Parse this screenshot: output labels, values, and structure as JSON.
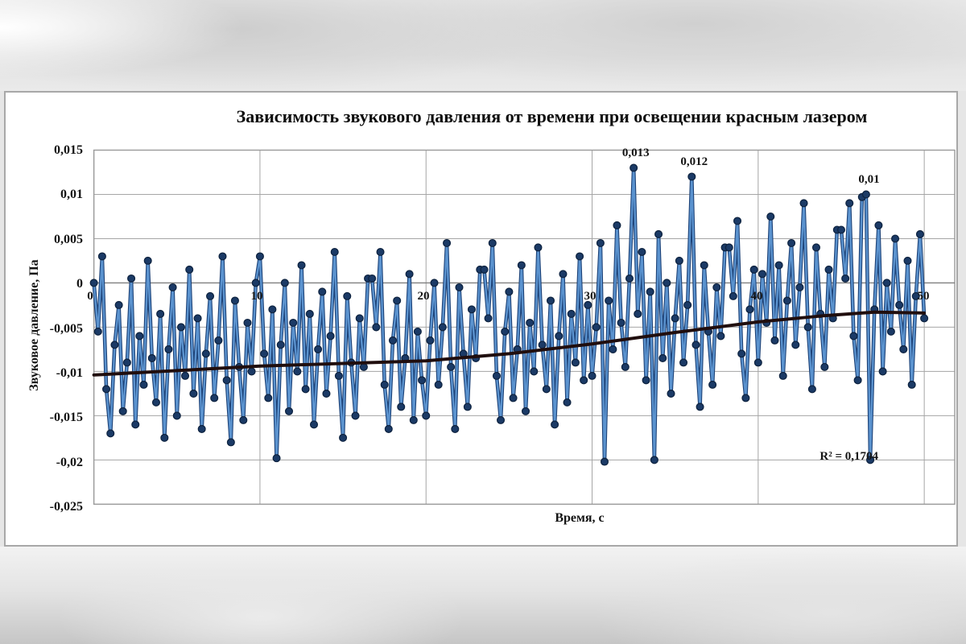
{
  "chart_data": {
    "type": "line",
    "title": "Зависимость звукового давления от времени при освещении красным лазером",
    "xlabel": "Время, с",
    "ylabel": "Звуковое давление, Па",
    "xlim": [
      0,
      51.8
    ],
    "ylim": [
      -0.025,
      0.015
    ],
    "grid": true,
    "x_ticks": [
      0,
      10,
      20,
      30,
      40,
      50
    ],
    "x_tick_labels": [
      "0",
      "10",
      "20",
      "30",
      "40",
      "50"
    ],
    "y_ticks": [
      0.015,
      0.01,
      0.005,
      0,
      -0.005,
      -0.01,
      -0.015,
      -0.02,
      -0.025
    ],
    "y_tick_labels": [
      "0,015",
      "0,01",
      "0,005",
      "0",
      "-0,005",
      "-0,01",
      "-0,015",
      "-0,02",
      "-0,025"
    ],
    "series": [
      {
        "name": "Звуковое давление",
        "marker": "circle",
        "t_start": 0,
        "t_step": 0.25,
        "values": [
          0,
          -0.0055,
          0.003,
          -0.012,
          -0.017,
          -0.007,
          -0.0025,
          -0.0145,
          -0.009,
          0.0005,
          -0.016,
          -0.006,
          -0.0115,
          0.0025,
          -0.0085,
          -0.0135,
          -0.0035,
          -0.0175,
          -0.0075,
          -0.0005,
          -0.015,
          -0.005,
          -0.0105,
          0.0015,
          -0.0125,
          -0.004,
          -0.0165,
          -0.008,
          -0.0015,
          -0.013,
          -0.0065,
          0.003,
          -0.011,
          -0.018,
          -0.002,
          -0.0095,
          -0.0155,
          -0.0045,
          -0.01,
          0,
          0.003,
          -0.008,
          -0.013,
          -0.003,
          -0.0198,
          -0.007,
          0,
          -0.0145,
          -0.0045,
          -0.01,
          0.002,
          -0.012,
          -0.0035,
          -0.016,
          -0.0075,
          -0.001,
          -0.0125,
          -0.006,
          0.0035,
          -0.0105,
          -0.0175,
          -0.0015,
          -0.009,
          -0.015,
          -0.004,
          -0.0095,
          0.0005,
          0.0005,
          -0.005,
          0.0035,
          -0.0115,
          -0.0165,
          -0.0065,
          -0.002,
          -0.014,
          -0.0085,
          0.001,
          -0.0155,
          -0.0055,
          -0.011,
          -0.015,
          -0.0065,
          0,
          -0.0115,
          -0.005,
          0.0045,
          -0.0095,
          -0.0165,
          -0.0005,
          -0.008,
          -0.014,
          -0.003,
          -0.0085,
          0.0015,
          0.0015,
          -0.004,
          0.0045,
          -0.0105,
          -0.0155,
          -0.0055,
          -0.001,
          -0.013,
          -0.0075,
          0.002,
          -0.0145,
          -0.0045,
          -0.01,
          0.004,
          -0.007,
          -0.012,
          -0.002,
          -0.016,
          -0.006,
          0.001,
          -0.0135,
          -0.0035,
          -0.009,
          0.003,
          -0.011,
          -0.0025,
          -0.0105,
          -0.005,
          0.0045,
          -0.0202,
          -0.002,
          -0.0075,
          0.0065,
          -0.0045,
          -0.0095,
          0.0005,
          0.013,
          -0.0035,
          0.0035,
          -0.011,
          -0.001,
          -0.02,
          0.0055,
          -0.0085,
          0,
          -0.0125,
          -0.004,
          0.0025,
          -0.009,
          -0.0025,
          0.012,
          -0.007,
          -0.014,
          0.002,
          -0.0055,
          -0.0115,
          -0.0005,
          -0.006,
          0.004,
          0.004,
          -0.0015,
          0.007,
          -0.008,
          -0.013,
          -0.003,
          0.0015,
          -0.009,
          0.001,
          -0.0045,
          0.0075,
          -0.0065,
          0.002,
          -0.0105,
          -0.002,
          0.0045,
          -0.007,
          -0.0005,
          0.009,
          -0.005,
          -0.012,
          0.004,
          -0.0035,
          -0.0095,
          0.0015,
          -0.004,
          0.006,
          0.006,
          0.0005,
          0.009,
          -0.006,
          -0.011,
          0.0097,
          0.01,
          -0.02,
          -0.003,
          0.0065,
          -0.01,
          0,
          -0.0055,
          0.005,
          -0.0025,
          -0.0075,
          0.0025,
          -0.0115,
          -0.0015,
          0.0055,
          -0.004
        ]
      }
    ],
    "trendline": {
      "type": "polynomial",
      "points": [
        [
          0,
          -0.0104
        ],
        [
          5,
          -0.0099
        ],
        [
          10,
          -0.0094
        ],
        [
          15,
          -0.0091
        ],
        [
          20,
          -0.0088
        ],
        [
          25,
          -0.008
        ],
        [
          30,
          -0.0069
        ],
        [
          35,
          -0.0056
        ],
        [
          40,
          -0.0044
        ],
        [
          44,
          -0.0037
        ],
        [
          47,
          -0.0033
        ],
        [
          50,
          -0.0034
        ]
      ]
    },
    "point_labels": [
      {
        "text": "0,013",
        "t": 32.5,
        "v": 0.013
      },
      {
        "text": "0,012",
        "t": 36,
        "v": 0.012
      },
      {
        "text": "0,01",
        "t": 46.5,
        "v": 0.01
      }
    ],
    "annotations": [
      {
        "text": "R² = 0,1704",
        "t": 45.3,
        "v": -0.0195
      }
    ],
    "legend": "none",
    "colors": {
      "series_line": "#5b93cf",
      "series_line_edge": "#1d4277",
      "marker": "#1b3a66",
      "marker_edge": "#0e2340",
      "trend": "#200e0e",
      "grid": "#a5a5a5",
      "axis": "#7f7f7f",
      "frame": "#9a9a9a"
    }
  }
}
